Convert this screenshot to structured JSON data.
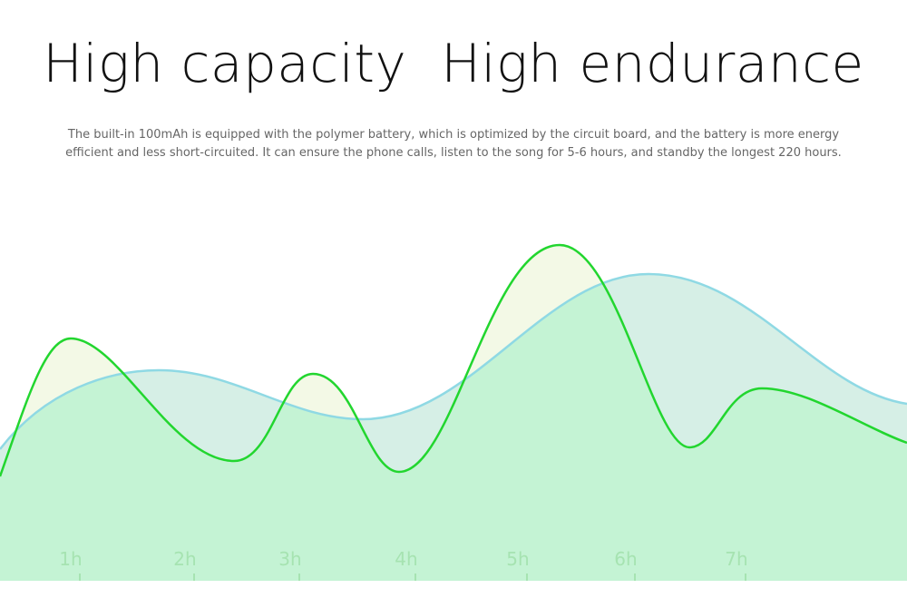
{
  "header": {
    "title": "High capacity  High endurance",
    "description": [
      "The built-in 100mAh is equipped with the polymer battery, which is optimized by the circuit board, and the battery is more energy",
      "efficient and less short-circuited. It can ensure the phone calls, listen to the song for 5-6 hours, and standby the longest 220 hours."
    ]
  },
  "timeline": {
    "labels": [
      "1h",
      "2h",
      "3h",
      "4h",
      "5h",
      "6h",
      "7h"
    ]
  }
}
